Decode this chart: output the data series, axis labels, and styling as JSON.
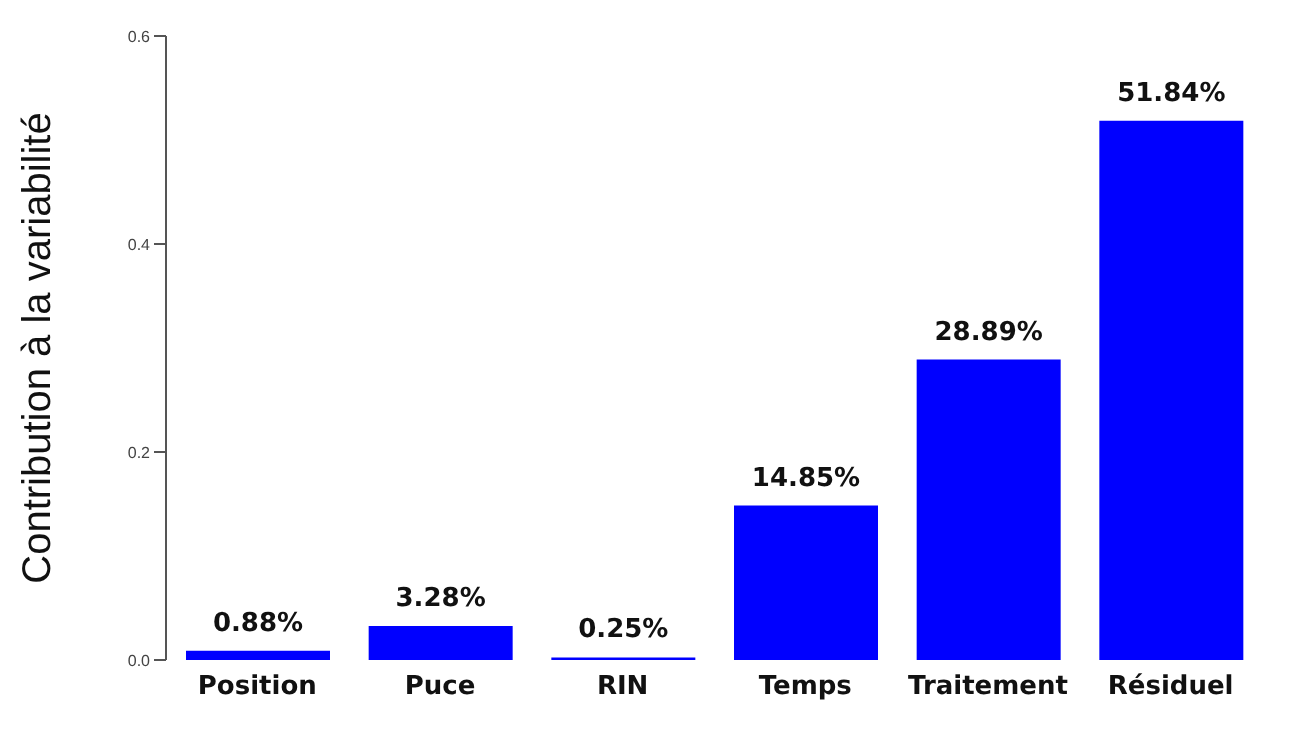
{
  "chart_data": {
    "type": "bar",
    "ylabel": "Contribution à la variabilité",
    "categories": [
      "Position",
      "Puce",
      "RIN",
      "Temps",
      "Traitement",
      "Résiduel"
    ],
    "values": [
      0.0088,
      0.0328,
      0.0025,
      0.1485,
      0.2889,
      0.5184
    ],
    "value_labels": [
      "0.88%",
      "3.28%",
      "0.25%",
      "14.85%",
      "28.89%",
      "51.84%"
    ],
    "color": "#0000ff",
    "ylim": [
      0,
      0.6
    ],
    "yticks": [
      {
        "value": 0,
        "label": "0.0"
      },
      {
        "value": 0.2,
        "label": "0.2"
      },
      {
        "value": 0.4,
        "label": "0.4"
      },
      {
        "value": 0.6,
        "label": "0.6"
      }
    ],
    "grid": false
  }
}
